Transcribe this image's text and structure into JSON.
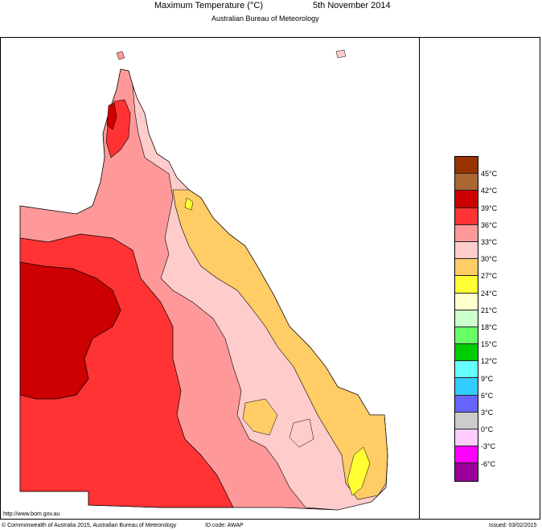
{
  "header": {
    "title": "Maximum Temperature (°C)",
    "date": "5th November 2014",
    "subtitle": "Australian Bureau of Meteorology"
  },
  "legend": {
    "items": [
      {
        "label": "45°C",
        "color": "#993300"
      },
      {
        "label": "42°C",
        "color": "#aa6633"
      },
      {
        "label": "39°C",
        "color": "#cc0000"
      },
      {
        "label": "36°C",
        "color": "#ff3333"
      },
      {
        "label": "33°C",
        "color": "#ff9999"
      },
      {
        "label": "30°C",
        "color": "#ffcccc"
      },
      {
        "label": "27°C",
        "color": "#ffcc66"
      },
      {
        "label": "24°C",
        "color": "#ffff33"
      },
      {
        "label": "21°C",
        "color": "#ffffcc"
      },
      {
        "label": "18°C",
        "color": "#ccffcc"
      },
      {
        "label": "15°C",
        "color": "#66ff66"
      },
      {
        "label": "12°C",
        "color": "#00cc00"
      },
      {
        "label": "9°C",
        "color": "#66ffff"
      },
      {
        "label": "6°C",
        "color": "#33ccff"
      },
      {
        "label": "3°C",
        "color": "#6666ff"
      },
      {
        "label": "0°C",
        "color": "#cccccc"
      },
      {
        "label": "-3°C",
        "color": "#ffccff"
      },
      {
        "label": "-6°C",
        "color": "#ff00ff"
      },
      {
        "label": "",
        "color": "#990099"
      }
    ]
  },
  "footer": {
    "url": "http://www.bom.gov.au",
    "copyright": "© Commonwealth of Australia 2015, Australian Bureau of Meteorology",
    "id_code": "ID code: AWAP",
    "issued": "Issued: 03/02/2015"
  }
}
